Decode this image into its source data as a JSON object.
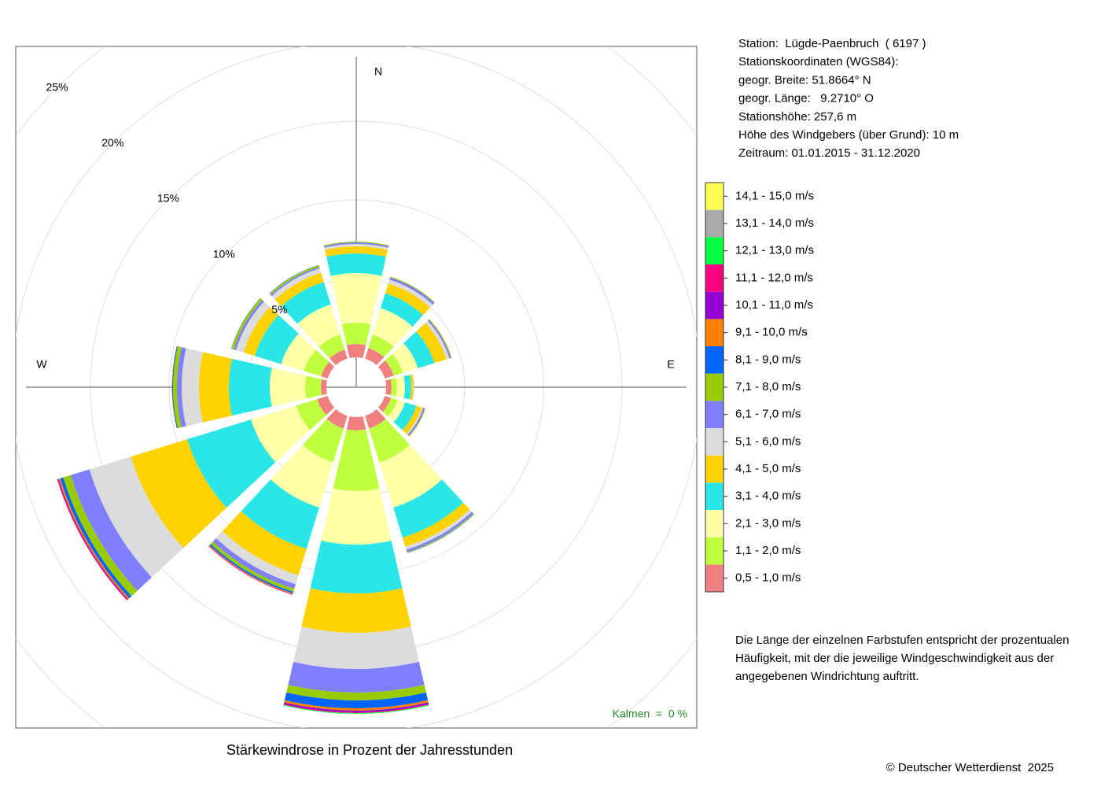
{
  "chart_data": {
    "type": "windrose",
    "title": "Stärkewindrose in Prozent der Jahresstunden",
    "categories": [
      "N",
      null,
      null,
      "E",
      null,
      null,
      null,
      null,
      null,
      "W",
      null,
      null
    ],
    "rlim": [
      0,
      25
    ],
    "rticks": [
      {
        "value": 5,
        "label": "5%"
      },
      {
        "value": 10,
        "label": "10%"
      },
      {
        "value": 15,
        "label": "15%"
      },
      {
        "value": 20,
        "label": "20%"
      },
      {
        "value": 25,
        "label": "25%"
      }
    ],
    "grid": true,
    "series": [
      {
        "name": "0,5 - 1,0 m/s",
        "color": "#f08080",
        "values": [
          0.85,
          0.7,
          0.6,
          0.35,
          0.4,
          0.85,
          0.85,
          0.85,
          0.7,
          0.35,
          0.45,
          0.6
        ]
      },
      {
        "name": "1,1 - 2,0 m/s",
        "color": "#c0ff3e",
        "values": [
          1.35,
          0.9,
          0.6,
          0.35,
          0.45,
          2.25,
          3.85,
          2.25,
          1.4,
          1.0,
          1.15,
          1.0
        ]
      },
      {
        "name": "2,1 - 3,0 m/s",
        "color": "#ffffa8",
        "values": [
          3.15,
          1.75,
          1.0,
          0.5,
          0.5,
          3.0,
          3.4,
          3.0,
          3.0,
          2.25,
          1.5,
          2.0
        ]
      },
      {
        "name": "3,1 - 4,0 m/s",
        "color": "#2ae6e6",
        "values": [
          1.25,
          1.0,
          1.1,
          0.4,
          0.75,
          2.0,
          3.1,
          2.75,
          4.25,
          2.6,
          1.75,
          1.5
        ]
      },
      {
        "name": "4,1 - 5,0 m/s",
        "color": "#ffd200",
        "values": [
          0.45,
          0.65,
          0.8,
          0.15,
          0.35,
          0.6,
          2.5,
          1.75,
          3.75,
          1.9,
          0.75,
          0.6
        ]
      },
      {
        "name": "5,1 - 6,0 m/s",
        "color": "#dcdcdc",
        "values": [
          0.15,
          0.25,
          0.2,
          0.05,
          0.1,
          0.2,
          2.3,
          0.6,
          2.75,
          1.1,
          0.5,
          0.3
        ]
      },
      {
        "name": "6,1 - 7,0 m/s",
        "color": "#8080ff",
        "values": [
          0.1,
          0.15,
          0.1,
          0,
          0.1,
          0.15,
          1.5,
          0.3,
          1.25,
          0.3,
          0.15,
          0.1
        ]
      },
      {
        "name": "7,1 - 8,0 m/s",
        "color": "#99cc00",
        "values": [
          0.05,
          0.05,
          0.05,
          0,
          0.05,
          0.05,
          0.5,
          0.2,
          0.5,
          0.25,
          0.15,
          0.1
        ]
      },
      {
        "name": "8,1 - 9,0 m/s",
        "color": "#0064ff",
        "values": [
          0,
          0,
          0,
          0,
          0,
          0.02,
          0.5,
          0.1,
          0.2,
          0.05,
          0.02,
          0.02
        ]
      },
      {
        "name": "9,1 - 10,0 m/s",
        "color": "#ff8200",
        "values": [
          0,
          0,
          0,
          0,
          0,
          0,
          0.15,
          0.05,
          0.1,
          0.02,
          0,
          0
        ]
      },
      {
        "name": "10,1 - 11,0 m/s",
        "color": "#9400d3",
        "values": [
          0,
          0,
          0,
          0,
          0,
          0,
          0.1,
          0.02,
          0.05,
          0,
          0,
          0
        ]
      },
      {
        "name": "11,1 - 12,0 m/s",
        "color": "#ff0080",
        "values": [
          0,
          0,
          0,
          0,
          0,
          0,
          0.05,
          0.03,
          0.05,
          0,
          0,
          0
        ]
      },
      {
        "name": "12,1 - 13,0 m/s",
        "color": "#00ff40",
        "values": [
          0,
          0,
          0,
          0,
          0,
          0,
          0.05,
          0,
          0,
          0,
          0,
          0
        ]
      },
      {
        "name": "13,1 - 14,0 m/s",
        "color": "#aaaaaa",
        "values": [
          0,
          0,
          0,
          0,
          0,
          0,
          0,
          0,
          0,
          0,
          0,
          0
        ]
      },
      {
        "name": "14,1 - 15,0 m/s",
        "color": "#ffff55",
        "values": [
          0,
          0,
          0,
          0,
          0,
          0,
          0,
          0,
          0,
          0,
          0,
          0
        ]
      }
    ],
    "annotations": [
      "Kalmen  =  0 %"
    ],
    "station_info": [
      "Station:  Lügde-Paenbruch  ( 6197 )",
      "Stationskoordinaten (WGS84):",
      "geogr. Breite: 51.8664° N",
      "geogr. Länge:   9.2710° O",
      "Stationshöhe: 257,6 m",
      "Höhe des Windgebers (über Grund): 10 m",
      "Zeitraum: 01.01.2015 - 31.12.2020"
    ],
    "description": [
      "Die Länge der einzelnen Farbstufen entspricht der prozentualen",
      "Häufigkeit, mit der die jeweilige Windgeschwindigkeit aus der",
      "angegebenen Windrichtung auftritt."
    ],
    "copyright": "© Deutscher Wetterdienst  2025"
  }
}
